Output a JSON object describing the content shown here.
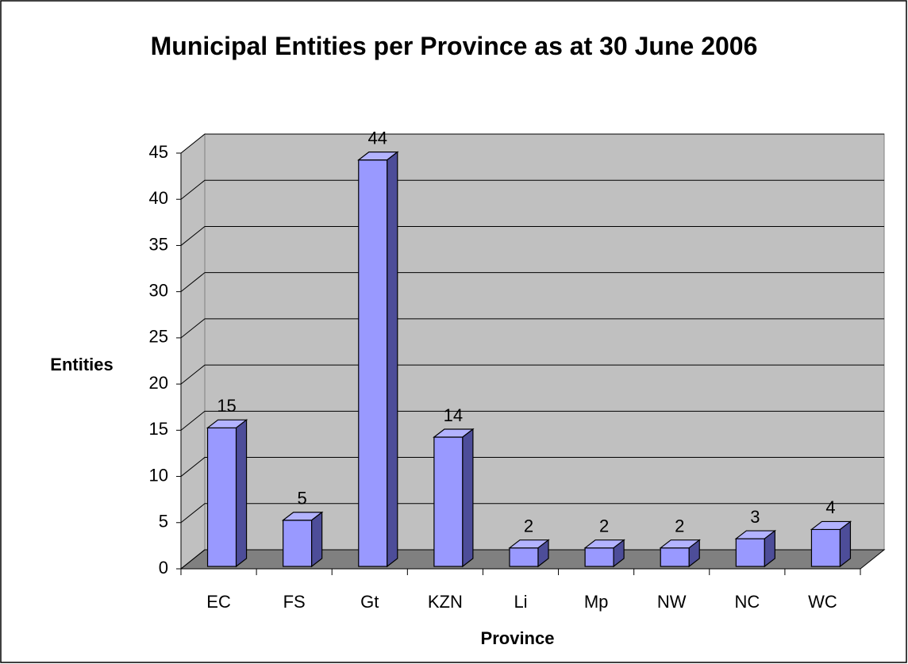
{
  "chart_data": {
    "type": "bar",
    "title": "Municipal Entities per Province as at 30 June 2006",
    "x_label": "Province",
    "y_label": "Entities",
    "categories": [
      "EC",
      "FS",
      "Gt",
      "KZN",
      "Li",
      "Mp",
      "NW",
      "NC",
      "WC"
    ],
    "values": [
      15,
      5,
      44,
      14,
      2,
      2,
      2,
      3,
      4
    ],
    "color": "#9999ff",
    "ylim": [
      0,
      45
    ],
    "yticks": [
      0,
      5,
      10,
      15,
      20,
      25,
      30,
      35,
      40,
      45
    ],
    "grid": true
  }
}
